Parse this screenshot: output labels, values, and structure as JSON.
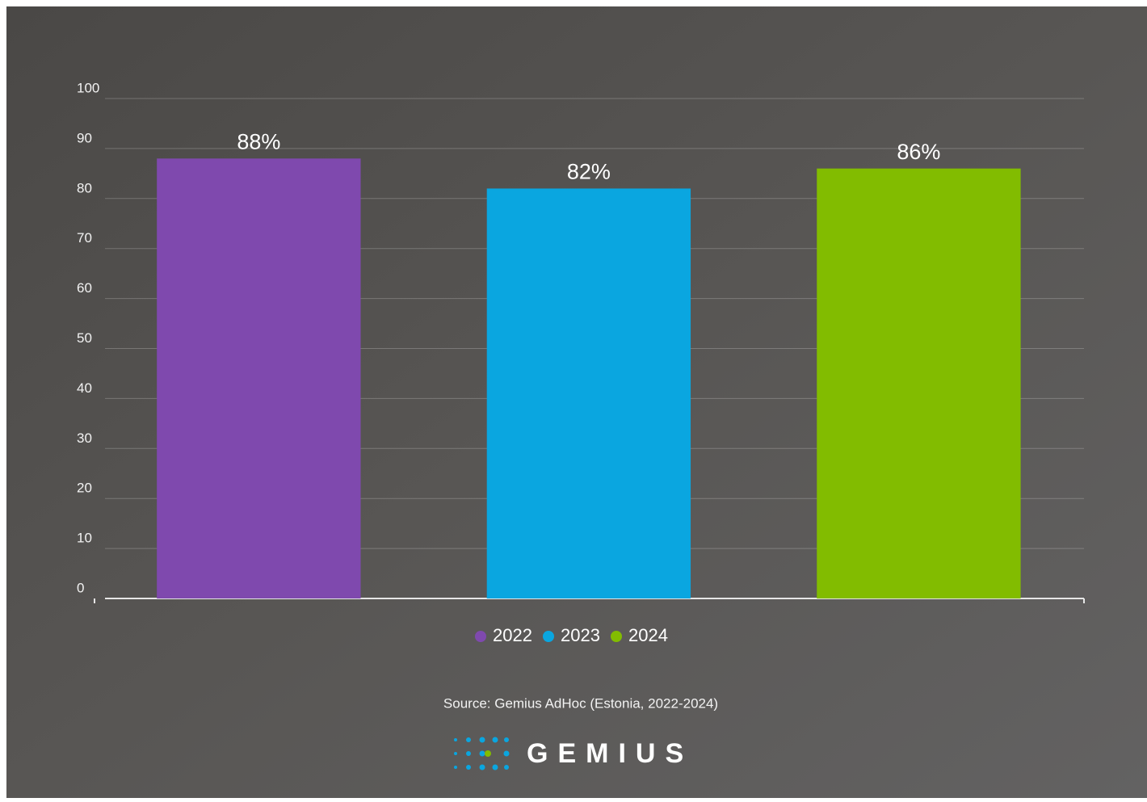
{
  "chart_data": {
    "type": "bar",
    "categories": [
      null
    ],
    "series": [
      {
        "name": "2022",
        "color": "#7f49ae",
        "values": [
          88
        ],
        "value_labels": [
          "88%"
        ]
      },
      {
        "name": "2023",
        "color": "#0aa6e0",
        "values": [
          82
        ],
        "value_labels": [
          "82%"
        ]
      },
      {
        "name": "2024",
        "color": "#82bc00",
        "values": [
          86
        ],
        "value_labels": [
          "86%"
        ]
      }
    ],
    "ylim": [
      0,
      100
    ],
    "yticks": [
      0,
      10,
      20,
      30,
      40,
      50,
      60,
      70,
      80,
      90,
      100
    ],
    "grid": true,
    "legend": "bottom",
    "source": "Source: Gemius AdHoc (Estonia, 2022-2024)"
  },
  "logo": "GEMIUS"
}
